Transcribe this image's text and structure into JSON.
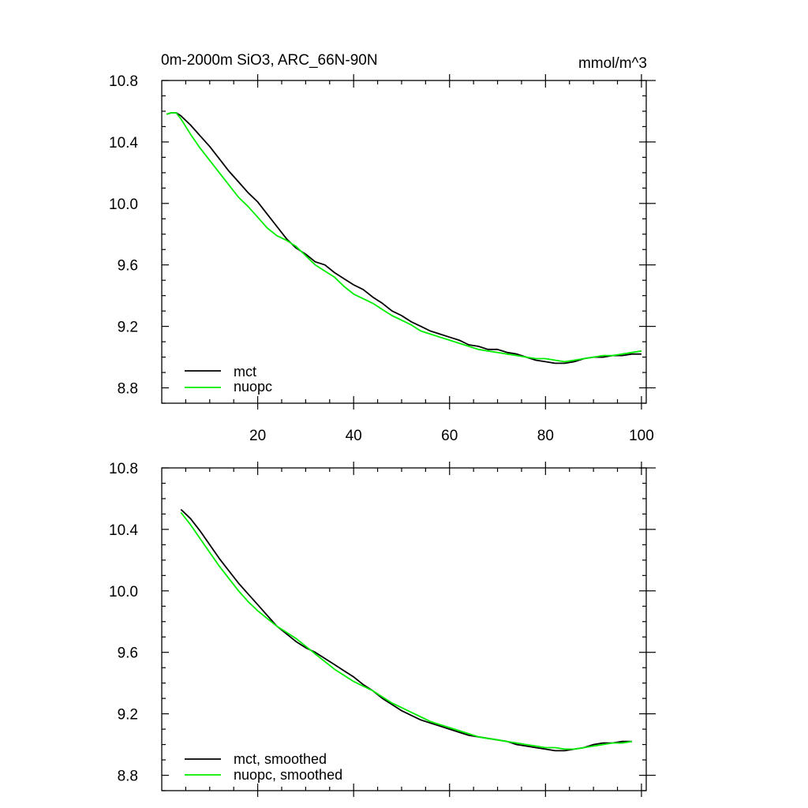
{
  "colors": {
    "mct": "#000000",
    "nuopc": "#00ee00"
  },
  "chart_data": [
    {
      "type": "line",
      "title": "0m-2000m SiO3, ARC_66N-90N",
      "units": "mmol/m^3",
      "xlabel": "",
      "ylabel": "",
      "xlim": [
        0,
        101
      ],
      "ylim": [
        8.7,
        10.8
      ],
      "x_ticks": [
        20,
        40,
        60,
        80,
        100
      ],
      "y_ticks": [
        8.8,
        9.2,
        9.6,
        10.0,
        10.4,
        10.8
      ],
      "y_tick_labels": [
        "8.8",
        "9.2",
        "9.6",
        "10.0",
        "10.4",
        "10.8"
      ],
      "legend_position": "bottom-left",
      "series": [
        {
          "name": "mct",
          "color_key": "mct",
          "x": [
            1,
            2,
            3,
            4,
            6,
            8,
            10,
            12,
            14,
            16,
            18,
            20,
            22,
            24,
            26,
            28,
            30,
            32,
            34,
            36,
            38,
            40,
            42,
            44,
            46,
            48,
            50,
            52,
            54,
            56,
            58,
            60,
            62,
            64,
            66,
            68,
            70,
            72,
            74,
            76,
            78,
            80,
            82,
            84,
            86,
            88,
            90,
            92,
            94,
            96,
            98,
            100
          ],
          "values": [
            10.58,
            10.59,
            10.59,
            10.57,
            10.51,
            10.44,
            10.37,
            10.29,
            10.21,
            10.14,
            10.07,
            10.01,
            9.93,
            9.85,
            9.77,
            9.71,
            9.67,
            9.62,
            9.6,
            9.55,
            9.51,
            9.47,
            9.44,
            9.39,
            9.35,
            9.3,
            9.27,
            9.23,
            9.2,
            9.17,
            9.15,
            9.13,
            9.11,
            9.08,
            9.07,
            9.05,
            9.05,
            9.03,
            9.02,
            9.0,
            8.98,
            8.97,
            8.96,
            8.96,
            8.97,
            8.99,
            9.0,
            9.0,
            9.01,
            9.01,
            9.02,
            9.02
          ]
        },
        {
          "name": "nuopc",
          "color_key": "nuopc",
          "x": [
            1,
            2,
            3,
            4,
            6,
            8,
            10,
            12,
            14,
            16,
            18,
            20,
            22,
            24,
            26,
            28,
            30,
            32,
            34,
            36,
            38,
            40,
            42,
            44,
            46,
            48,
            50,
            52,
            54,
            56,
            58,
            60,
            62,
            64,
            66,
            68,
            70,
            72,
            74,
            76,
            78,
            80,
            82,
            84,
            86,
            88,
            90,
            92,
            94,
            96,
            98,
            100
          ],
          "values": [
            10.58,
            10.59,
            10.59,
            10.55,
            10.45,
            10.36,
            10.28,
            10.2,
            10.12,
            10.04,
            9.98,
            9.91,
            9.84,
            9.79,
            9.76,
            9.72,
            9.66,
            9.6,
            9.56,
            9.52,
            9.46,
            9.41,
            9.38,
            9.35,
            9.31,
            9.27,
            9.24,
            9.21,
            9.17,
            9.15,
            9.13,
            9.11,
            9.09,
            9.07,
            9.05,
            9.04,
            9.03,
            9.02,
            9.01,
            9.0,
            8.99,
            8.99,
            8.98,
            8.97,
            8.98,
            8.99,
            9.0,
            9.01,
            9.01,
            9.02,
            9.03,
            9.04
          ]
        }
      ]
    },
    {
      "type": "line",
      "title": "",
      "units": "",
      "xlabel": "",
      "ylabel": "",
      "xlim": [
        0,
        101
      ],
      "ylim": [
        8.7,
        10.8
      ],
      "x_ticks": [
        20,
        40,
        60,
        80,
        100
      ],
      "y_ticks": [
        8.8,
        9.2,
        9.6,
        10.0,
        10.4,
        10.8
      ],
      "y_tick_labels": [
        "8.8",
        "9.2",
        "9.6",
        "10.0",
        "10.4",
        "10.8"
      ],
      "legend_position": "bottom-left",
      "series": [
        {
          "name": "mct, smoothed",
          "color_key": "mct",
          "x": [
            4,
            6,
            8,
            10,
            12,
            14,
            16,
            18,
            20,
            22,
            24,
            26,
            28,
            30,
            32,
            34,
            36,
            38,
            40,
            42,
            44,
            46,
            48,
            50,
            52,
            54,
            56,
            58,
            60,
            62,
            64,
            66,
            68,
            70,
            72,
            74,
            76,
            78,
            80,
            82,
            84,
            86,
            88,
            90,
            92,
            94,
            96,
            98
          ],
          "values": [
            10.53,
            10.47,
            10.39,
            10.3,
            10.21,
            10.13,
            10.05,
            9.98,
            9.91,
            9.84,
            9.77,
            9.72,
            9.67,
            9.63,
            9.6,
            9.56,
            9.52,
            9.48,
            9.44,
            9.39,
            9.35,
            9.3,
            9.26,
            9.22,
            9.19,
            9.16,
            9.14,
            9.12,
            9.1,
            9.08,
            9.06,
            9.05,
            9.04,
            9.03,
            9.02,
            9.0,
            8.99,
            8.98,
            8.97,
            8.96,
            8.96,
            8.97,
            8.98,
            9.0,
            9.01,
            9.01,
            9.02,
            9.02
          ]
        },
        {
          "name": "nuopc, smoothed",
          "color_key": "nuopc",
          "x": [
            4,
            6,
            8,
            10,
            12,
            14,
            16,
            18,
            20,
            22,
            24,
            26,
            28,
            30,
            32,
            34,
            36,
            38,
            40,
            42,
            44,
            46,
            48,
            50,
            52,
            54,
            56,
            58,
            60,
            62,
            64,
            66,
            68,
            70,
            72,
            74,
            76,
            78,
            80,
            82,
            84,
            86,
            88,
            90,
            92,
            94,
            96,
            98
          ],
          "values": [
            10.51,
            10.43,
            10.34,
            10.25,
            10.16,
            10.08,
            10.0,
            9.93,
            9.87,
            9.82,
            9.77,
            9.73,
            9.69,
            9.64,
            9.59,
            9.54,
            9.49,
            9.45,
            9.41,
            9.38,
            9.35,
            9.31,
            9.27,
            9.24,
            9.21,
            9.18,
            9.15,
            9.13,
            9.11,
            9.09,
            9.07,
            9.05,
            9.04,
            9.03,
            9.02,
            9.01,
            9.0,
            8.99,
            8.98,
            8.98,
            8.97,
            8.97,
            8.98,
            8.99,
            9.0,
            9.01,
            9.01,
            9.02
          ]
        }
      ]
    }
  ]
}
